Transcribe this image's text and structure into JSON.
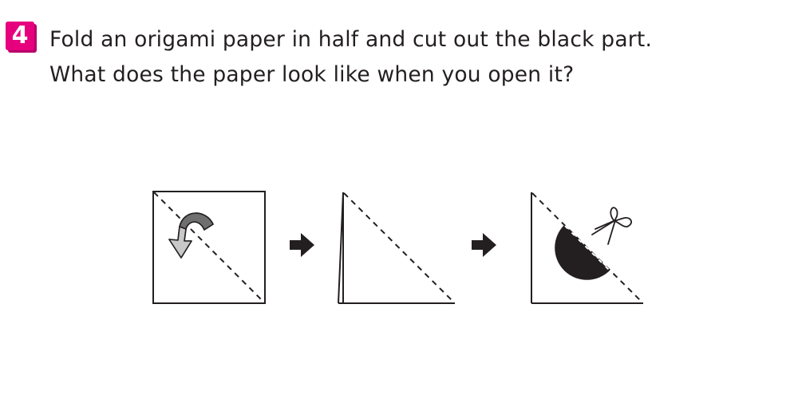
{
  "problem": {
    "number": "4",
    "badge_color": "#e6007e",
    "line1": "Fold an origami paper in half and cut out the black part.",
    "line2": "What does the paper look like when you open it?"
  },
  "steps": [
    {
      "name": "fold-step",
      "icons": [
        "curved-arrow-icon"
      ]
    },
    {
      "name": "folded-triangle-step",
      "icons": []
    },
    {
      "name": "cut-step",
      "icons": [
        "scissors-icon"
      ]
    }
  ],
  "arrows": [
    "right-arrow-icon",
    "right-arrow-icon"
  ],
  "colors": {
    "ink": "#231f20",
    "arrow_gray": "#808080",
    "arrow_light": "#bdbdbd"
  }
}
